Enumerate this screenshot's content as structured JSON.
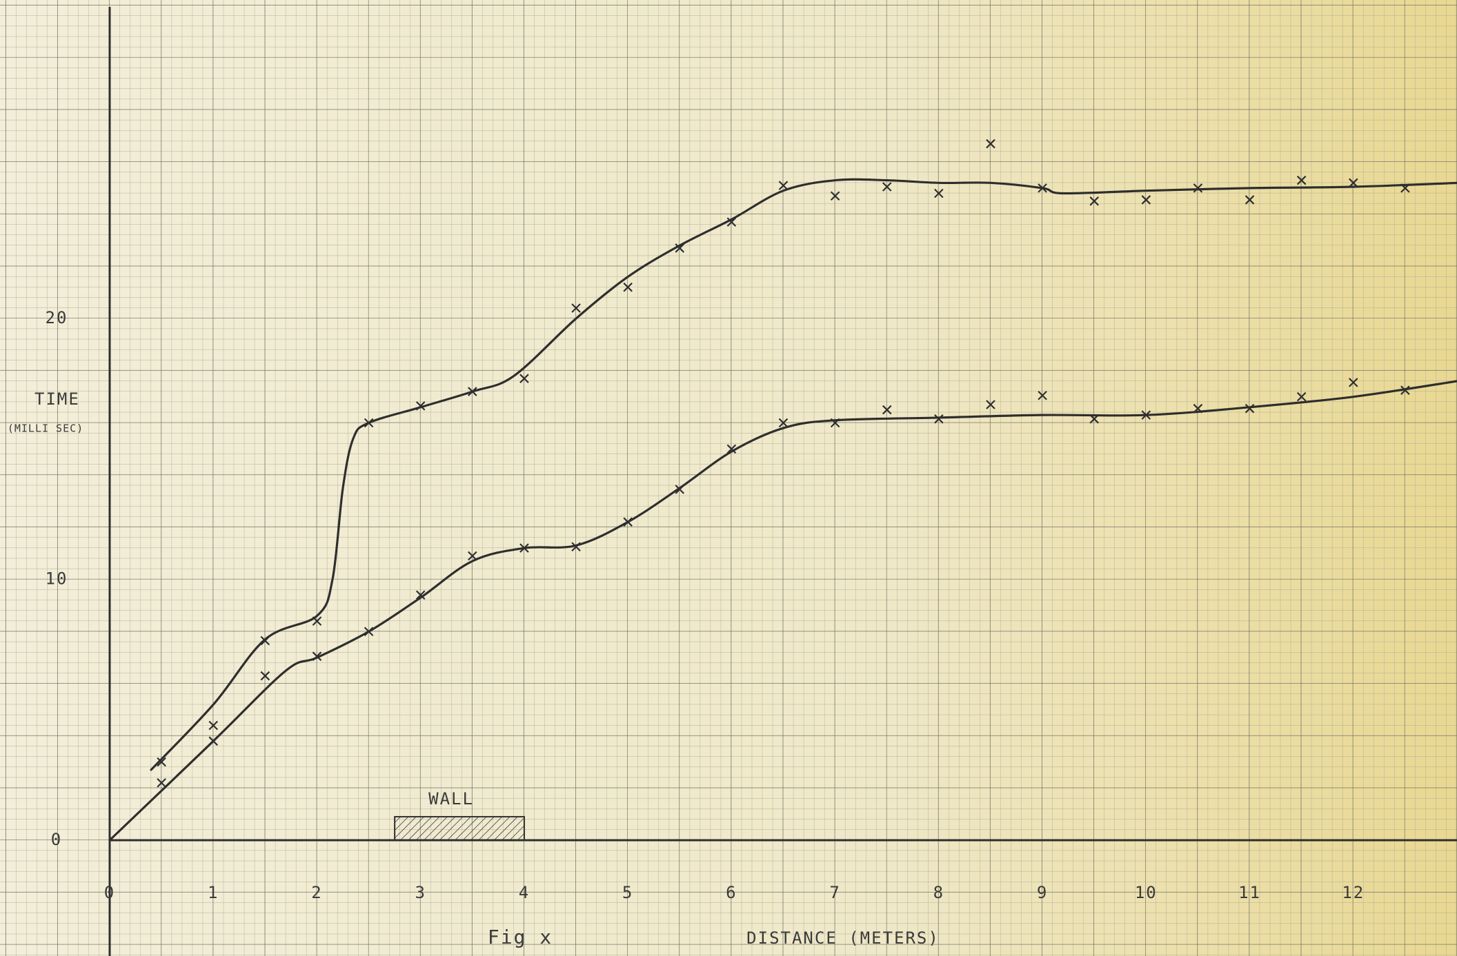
{
  "chart_data": {
    "type": "scatter",
    "caption": "Fig x",
    "x_label": "DISTANCE (METERS)",
    "y_label": "TIME",
    "y_label_unit": "(MILLI SEC)",
    "xlim": [
      0,
      13
    ],
    "ylim": [
      0,
      32
    ],
    "xticks": [
      0,
      1,
      2,
      3,
      4,
      5,
      6,
      7,
      8,
      9,
      10,
      11,
      12
    ],
    "yticks": [
      0,
      10,
      20
    ],
    "color": "#2e2e2e",
    "x": [
      0.5,
      1,
      1.5,
      2,
      2.5,
      3,
      3.5,
      4,
      4.5,
      5,
      5.5,
      6,
      6.5,
      7,
      7.5,
      8,
      8.5,
      9,
      9.5,
      10,
      10.5,
      11,
      11.5,
      12,
      12.5
    ],
    "series": [
      {
        "values": [
          3.0,
          4.4,
          7.65,
          8.4,
          16.0,
          16.65,
          17.2,
          17.7,
          20.4,
          21.2,
          22.7,
          23.7,
          25.1,
          24.7,
          25.05,
          24.8,
          26.7,
          25.0,
          24.5,
          24.55,
          25.0,
          24.55,
          25.3,
          25.2,
          25.0
        ]
      },
      {
        "values": [
          2.2,
          3.8,
          6.3,
          7.05,
          8.0,
          9.4,
          10.9,
          11.2,
          11.25,
          12.2,
          13.45,
          15.0,
          16.0,
          16.0,
          16.5,
          16.15,
          16.7,
          17.05,
          16.15,
          16.3,
          16.55,
          16.55,
          17.0,
          17.55,
          17.25
        ]
      }
    ],
    "curves": [
      {
        "x": [
          0.4,
          1,
          1.5,
          2,
          2.15,
          2.25,
          2.35,
          2.5,
          3,
          3.5,
          3.9,
          4.5,
          5,
          5.5,
          6,
          6.5,
          7,
          7.5,
          8,
          8.5,
          9,
          9.2,
          10,
          11,
          12,
          13
        ],
        "values": [
          2.7,
          5.2,
          7.7,
          8.6,
          10.0,
          13.5,
          15.4,
          16.0,
          16.6,
          17.2,
          17.8,
          20.0,
          21.6,
          22.8,
          23.8,
          24.9,
          25.3,
          25.3,
          25.2,
          25.2,
          25.0,
          24.8,
          24.9,
          25.0,
          25.05,
          25.2
        ]
      },
      {
        "x": [
          0,
          1,
          1.7,
          2,
          2.5,
          3,
          3.5,
          4,
          4.5,
          5,
          5.5,
          6,
          6.5,
          7,
          8,
          9,
          10,
          11,
          12,
          13
        ],
        "values": [
          0,
          3.8,
          6.5,
          7.0,
          8.0,
          9.3,
          10.7,
          11.2,
          11.3,
          12.2,
          13.5,
          14.9,
          15.8,
          16.1,
          16.2,
          16.3,
          16.3,
          16.6,
          17.0,
          17.6
        ]
      }
    ],
    "annotation": {
      "text": "WALL",
      "x": [
        2.75,
        4.0
      ],
      "height": 0.9
    }
  }
}
